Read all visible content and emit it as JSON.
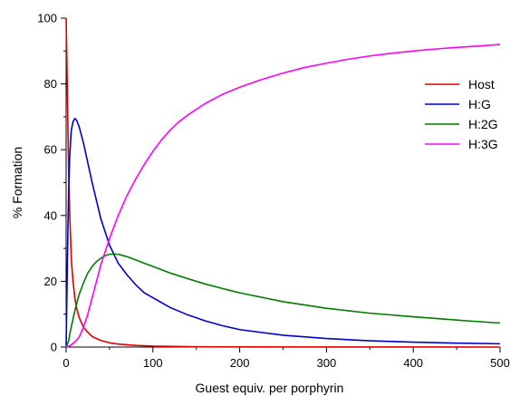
{
  "chart_data": {
    "type": "line",
    "title": "",
    "xlabel": "Guest equiv. per porphyrin",
    "ylabel": "% Formation",
    "xlim": [
      0,
      500
    ],
    "ylim": [
      0,
      100
    ],
    "x_ticks": [
      0,
      100,
      200,
      300,
      400,
      500
    ],
    "y_ticks": [
      0,
      20,
      40,
      60,
      80,
      100
    ],
    "grid": false,
    "legend_position": "top-right",
    "series": [
      {
        "name": "Host",
        "color": "#e00000",
        "points": [
          [
            0,
            100
          ],
          [
            1,
            85
          ],
          [
            2,
            68
          ],
          [
            3,
            52
          ],
          [
            4,
            42
          ],
          [
            5,
            34
          ],
          [
            6,
            27
          ],
          [
            7,
            23
          ],
          [
            8,
            20
          ],
          [
            10,
            15
          ],
          [
            12,
            12
          ],
          [
            15,
            9
          ],
          [
            20,
            6
          ],
          [
            25,
            4.5
          ],
          [
            30,
            3.2
          ],
          [
            40,
            2
          ],
          [
            50,
            1.3
          ],
          [
            60,
            0.9
          ],
          [
            80,
            0.5
          ],
          [
            100,
            0.3
          ],
          [
            150,
            0.1
          ],
          [
            200,
            0.05
          ],
          [
            300,
            0.02
          ],
          [
            500,
            0
          ]
        ]
      },
      {
        "name": "H:G",
        "color": "#0000cc",
        "points": [
          [
            0,
            0
          ],
          [
            1,
            18
          ],
          [
            2,
            35
          ],
          [
            3,
            48
          ],
          [
            4,
            57
          ],
          [
            5,
            62
          ],
          [
            6,
            66
          ],
          [
            8,
            68.5
          ],
          [
            10,
            69.5
          ],
          [
            12,
            69
          ],
          [
            15,
            67
          ],
          [
            20,
            62
          ],
          [
            25,
            56
          ],
          [
            30,
            50
          ],
          [
            40,
            39
          ],
          [
            50,
            31
          ],
          [
            60,
            25.5
          ],
          [
            70,
            22
          ],
          [
            80,
            19
          ],
          [
            90,
            16.5
          ],
          [
            100,
            15
          ],
          [
            120,
            12
          ],
          [
            140,
            9.8
          ],
          [
            160,
            8
          ],
          [
            180,
            6.5
          ],
          [
            200,
            5.3
          ],
          [
            250,
            3.6
          ],
          [
            300,
            2.6
          ],
          [
            350,
            1.9
          ],
          [
            400,
            1.5
          ],
          [
            450,
            1.2
          ],
          [
            500,
            1
          ]
        ]
      },
      {
        "name": "H:2G",
        "color": "#007a00",
        "points": [
          [
            0,
            0
          ],
          [
            3,
            2
          ],
          [
            5,
            5
          ],
          [
            10,
            11
          ],
          [
            15,
            16
          ],
          [
            20,
            19.5
          ],
          [
            25,
            22.5
          ],
          [
            30,
            24.5
          ],
          [
            35,
            26
          ],
          [
            40,
            27
          ],
          [
            45,
            27.8
          ],
          [
            50,
            28.2
          ],
          [
            55,
            28.3
          ],
          [
            60,
            28.2
          ],
          [
            70,
            27.5
          ],
          [
            80,
            26.5
          ],
          [
            90,
            25.5
          ],
          [
            100,
            24.5
          ],
          [
            120,
            22.5
          ],
          [
            140,
            20.8
          ],
          [
            160,
            19.2
          ],
          [
            180,
            17.8
          ],
          [
            200,
            16.5
          ],
          [
            250,
            13.8
          ],
          [
            300,
            11.8
          ],
          [
            350,
            10.3
          ],
          [
            400,
            9.2
          ],
          [
            450,
            8.2
          ],
          [
            500,
            7.3
          ]
        ]
      },
      {
        "name": "H:3G",
        "color": "#ff00ff",
        "points": [
          [
            0,
            0
          ],
          [
            5,
            0.5
          ],
          [
            10,
            1.5
          ],
          [
            15,
            3
          ],
          [
            20,
            6
          ],
          [
            25,
            10
          ],
          [
            30,
            15
          ],
          [
            35,
            20
          ],
          [
            40,
            25
          ],
          [
            45,
            29
          ],
          [
            50,
            33
          ],
          [
            60,
            40
          ],
          [
            70,
            46
          ],
          [
            80,
            51
          ],
          [
            90,
            55.5
          ],
          [
            100,
            59.5
          ],
          [
            110,
            63
          ],
          [
            120,
            66
          ],
          [
            130,
            68.5
          ],
          [
            140,
            70.5
          ],
          [
            160,
            74
          ],
          [
            180,
            76.8
          ],
          [
            200,
            79
          ],
          [
            225,
            81.3
          ],
          [
            250,
            83.3
          ],
          [
            275,
            85
          ],
          [
            300,
            86.3
          ],
          [
            325,
            87.5
          ],
          [
            350,
            88.5
          ],
          [
            375,
            89.3
          ],
          [
            400,
            90
          ],
          [
            425,
            90.6
          ],
          [
            450,
            91.1
          ],
          [
            475,
            91.5
          ],
          [
            500,
            92
          ]
        ]
      }
    ]
  }
}
